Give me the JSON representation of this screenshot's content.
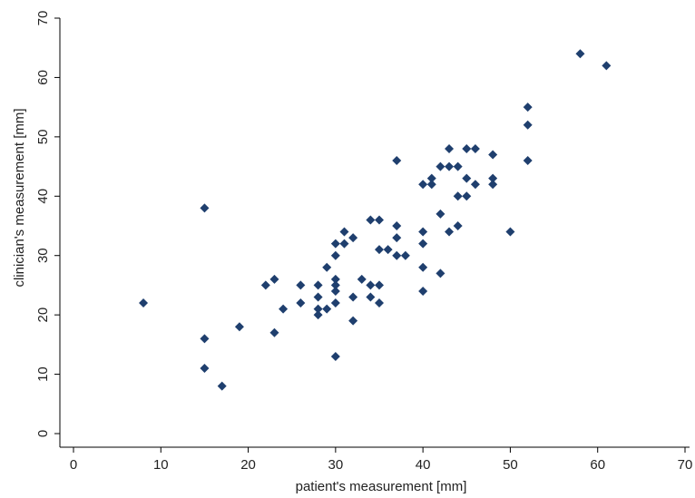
{
  "chart_data": {
    "type": "scatter",
    "title": "",
    "xlabel": "patient's measurement [mm]",
    "ylabel": "clinician's measurement [mm]",
    "xlim": [
      0,
      70
    ],
    "ylim": [
      0,
      70
    ],
    "xticks": [
      "0",
      "10",
      "20",
      "30",
      "40",
      "50",
      "60",
      "70"
    ],
    "yticks": [
      "0",
      "10",
      "20",
      "30",
      "40",
      "50",
      "60",
      "70"
    ],
    "grid": false,
    "marker": "diamond",
    "marker_color": "#1f3f6e",
    "series": [
      {
        "points": [
          [
            8,
            22
          ],
          [
            15,
            38
          ],
          [
            15,
            16
          ],
          [
            15,
            11
          ],
          [
            17,
            8
          ],
          [
            19,
            18
          ],
          [
            22,
            25
          ],
          [
            23,
            26
          ],
          [
            23,
            17
          ],
          [
            24,
            21
          ],
          [
            26,
            25
          ],
          [
            26,
            22
          ],
          [
            28,
            25
          ],
          [
            28,
            23
          ],
          [
            28,
            21
          ],
          [
            28,
            20
          ],
          [
            29,
            28
          ],
          [
            29,
            21
          ],
          [
            30,
            32
          ],
          [
            30,
            30
          ],
          [
            30,
            26
          ],
          [
            30,
            25
          ],
          [
            30,
            24
          ],
          [
            30,
            22
          ],
          [
            30,
            13
          ],
          [
            31,
            34
          ],
          [
            31,
            32
          ],
          [
            32,
            33
          ],
          [
            32,
            23
          ],
          [
            32,
            19
          ],
          [
            33,
            26
          ],
          [
            34,
            36
          ],
          [
            34,
            25
          ],
          [
            34,
            23
          ],
          [
            35,
            36
          ],
          [
            35,
            31
          ],
          [
            35,
            25
          ],
          [
            35,
            22
          ],
          [
            36,
            31
          ],
          [
            37,
            46
          ],
          [
            37,
            35
          ],
          [
            37,
            33
          ],
          [
            37,
            30
          ],
          [
            38,
            30
          ],
          [
            40,
            42
          ],
          [
            40,
            34
          ],
          [
            40,
            32
          ],
          [
            40,
            28
          ],
          [
            40,
            24
          ],
          [
            41,
            43
          ],
          [
            41,
            42
          ],
          [
            42,
            45
          ],
          [
            42,
            37
          ],
          [
            42,
            27
          ],
          [
            43,
            48
          ],
          [
            43,
            45
          ],
          [
            43,
            34
          ],
          [
            44,
            45
          ],
          [
            44,
            40
          ],
          [
            44,
            35
          ],
          [
            45,
            48
          ],
          [
            45,
            43
          ],
          [
            45,
            40
          ],
          [
            46,
            48
          ],
          [
            46,
            42
          ],
          [
            48,
            47
          ],
          [
            48,
            43
          ],
          [
            48,
            42
          ],
          [
            50,
            34
          ],
          [
            52,
            55
          ],
          [
            52,
            52
          ],
          [
            52,
            46
          ],
          [
            58,
            64
          ],
          [
            61,
            62
          ]
        ]
      }
    ]
  }
}
